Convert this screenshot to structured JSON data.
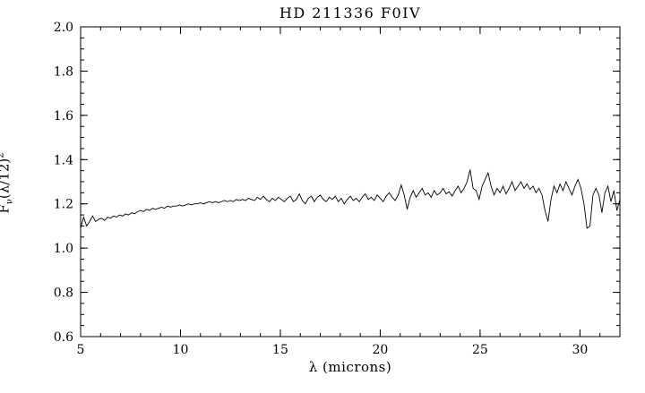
{
  "chart_data": {
    "type": "line",
    "title": "HD 211336 F0IV",
    "xlabel": "λ (microns)",
    "ylabel": "F_ν(λ/12)^2",
    "ylabel_parts": {
      "base": "F",
      "sub": "ν",
      "mid": "(λ/12)",
      "sup": "2"
    },
    "xlim": [
      5,
      32
    ],
    "ylim": [
      0.6,
      2.0
    ],
    "xticks": [
      5,
      10,
      15,
      20,
      25,
      30
    ],
    "xtick_labels": [
      "5",
      "10",
      "15",
      "20",
      "25",
      "30"
    ],
    "yticks": [
      0.6,
      0.8,
      1.0,
      1.2,
      1.4,
      1.6,
      1.8,
      2.0
    ],
    "ytick_labels": [
      "0.6",
      "0.8",
      "1.0",
      "1.2",
      "1.4",
      "1.6",
      "1.8",
      "2.0"
    ],
    "xtick_minor_step": 1,
    "ytick_minor_step": 0.05,
    "grid": false,
    "legend": false,
    "line_color": "#000000",
    "background": "#ffffff",
    "series": [
      {
        "name": "spectrum",
        "x_start": 5.0,
        "x_step": 0.15,
        "y": [
          1.09,
          1.14,
          1.1,
          1.12,
          1.145,
          1.12,
          1.13,
          1.135,
          1.125,
          1.14,
          1.135,
          1.145,
          1.14,
          1.15,
          1.145,
          1.155,
          1.15,
          1.16,
          1.155,
          1.165,
          1.17,
          1.165,
          1.175,
          1.17,
          1.18,
          1.175,
          1.18,
          1.185,
          1.18,
          1.19,
          1.185,
          1.19,
          1.19,
          1.195,
          1.19,
          1.195,
          1.2,
          1.195,
          1.2,
          1.2,
          1.205,
          1.2,
          1.205,
          1.21,
          1.205,
          1.21,
          1.205,
          1.21,
          1.215,
          1.21,
          1.215,
          1.21,
          1.22,
          1.215,
          1.22,
          1.215,
          1.225,
          1.22,
          1.215,
          1.23,
          1.22,
          1.235,
          1.22,
          1.21,
          1.225,
          1.215,
          1.23,
          1.22,
          1.21,
          1.225,
          1.235,
          1.21,
          1.22,
          1.245,
          1.215,
          1.2,
          1.225,
          1.235,
          1.21,
          1.23,
          1.24,
          1.22,
          1.21,
          1.23,
          1.22,
          1.235,
          1.21,
          1.225,
          1.2,
          1.22,
          1.235,
          1.215,
          1.225,
          1.21,
          1.23,
          1.245,
          1.22,
          1.23,
          1.215,
          1.24,
          1.225,
          1.21,
          1.235,
          1.25,
          1.23,
          1.215,
          1.24,
          1.285,
          1.24,
          1.175,
          1.23,
          1.26,
          1.23,
          1.25,
          1.27,
          1.24,
          1.25,
          1.23,
          1.26,
          1.24,
          1.25,
          1.27,
          1.245,
          1.255,
          1.235,
          1.26,
          1.28,
          1.25,
          1.27,
          1.3,
          1.355,
          1.27,
          1.26,
          1.22,
          1.28,
          1.31,
          1.34,
          1.28,
          1.24,
          1.27,
          1.25,
          1.28,
          1.245,
          1.27,
          1.3,
          1.26,
          1.28,
          1.3,
          1.27,
          1.29,
          1.265,
          1.28,
          1.25,
          1.27,
          1.24,
          1.17,
          1.12,
          1.22,
          1.28,
          1.25,
          1.29,
          1.26,
          1.3,
          1.27,
          1.24,
          1.28,
          1.31,
          1.27,
          1.2,
          1.09,
          1.1,
          1.24,
          1.27,
          1.24,
          1.16,
          1.25,
          1.28,
          1.21,
          1.26,
          1.17,
          1.22
        ]
      }
    ]
  }
}
